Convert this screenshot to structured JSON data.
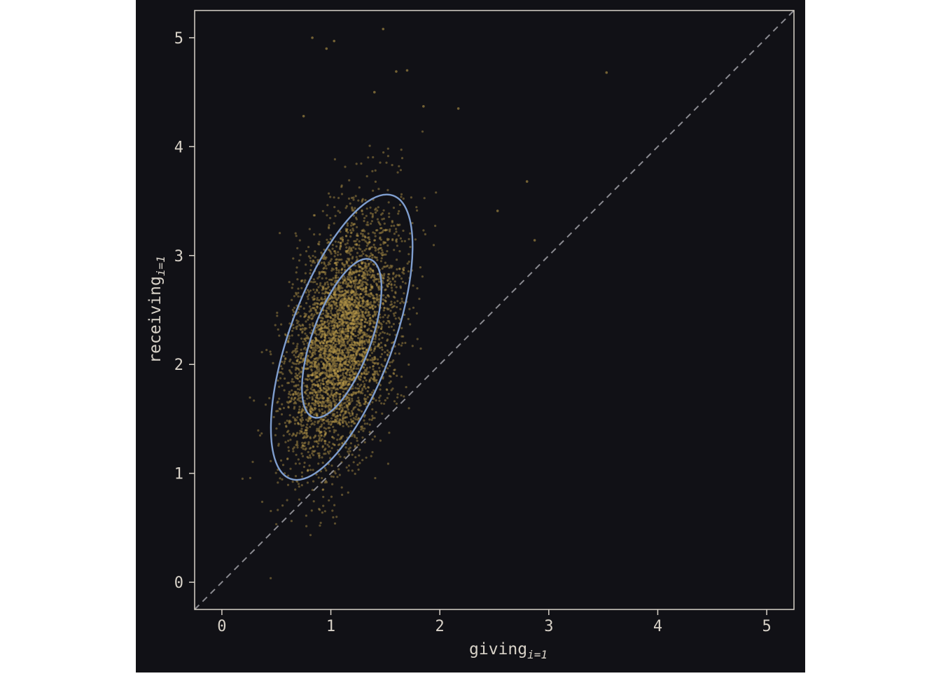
{
  "chart_data": {
    "type": "scatter",
    "xlabel": {
      "base": "giving",
      "sub": "i=1"
    },
    "ylabel": {
      "base": "receiving",
      "sub": "i=1"
    },
    "xlim": [
      -0.25,
      5.25
    ],
    "ylim": [
      -0.25,
      5.25
    ],
    "x_ticks": [
      0,
      1,
      2,
      3,
      4,
      5
    ],
    "y_ticks": [
      0,
      1,
      2,
      3,
      4,
      5
    ],
    "x_tick_labels": [
      "0",
      "1",
      "2",
      "3",
      "4",
      "5"
    ],
    "y_tick_labels": [
      "0",
      "1",
      "2",
      "3",
      "4",
      "5"
    ],
    "grid": false,
    "reference_line": {
      "style": "dashed",
      "from": [
        -0.25,
        -0.25
      ],
      "to": [
        5.25,
        5.25
      ]
    },
    "colors": {
      "background": "#111116",
      "frame": "#d8d2c8",
      "points": "#b8994a",
      "contours": "#7f9ecf",
      "reference_line": "#8a8a90"
    },
    "points_summary": {
      "count": 4000,
      "mean_x": 1.1,
      "mean_y": 2.22,
      "sd_x": 0.25,
      "sd_y": 0.58,
      "correlation": 0.42
    },
    "outliers": [
      [
        0.83,
        5.0
      ],
      [
        0.96,
        4.9
      ],
      [
        1.03,
        4.97
      ],
      [
        1.48,
        5.08
      ],
      [
        1.6,
        4.69
      ],
      [
        1.7,
        4.7
      ],
      [
        3.53,
        4.68
      ],
      [
        2.8,
        3.68
      ],
      [
        2.53,
        3.41
      ],
      [
        2.87,
        3.14
      ],
      [
        0.75,
        4.28
      ],
      [
        1.4,
        4.5
      ],
      [
        1.85,
        4.37
      ],
      [
        2.17,
        4.35
      ]
    ],
    "contours": [
      {
        "center": [
          1.1,
          2.24
        ],
        "x_range": [
          0.73,
          1.46
        ],
        "y_range": [
          1.51,
          2.97
        ]
      },
      {
        "center": [
          1.1,
          2.25
        ],
        "x_range": [
          0.45,
          1.75
        ],
        "y_range": [
          0.94,
          3.56
        ]
      }
    ]
  }
}
